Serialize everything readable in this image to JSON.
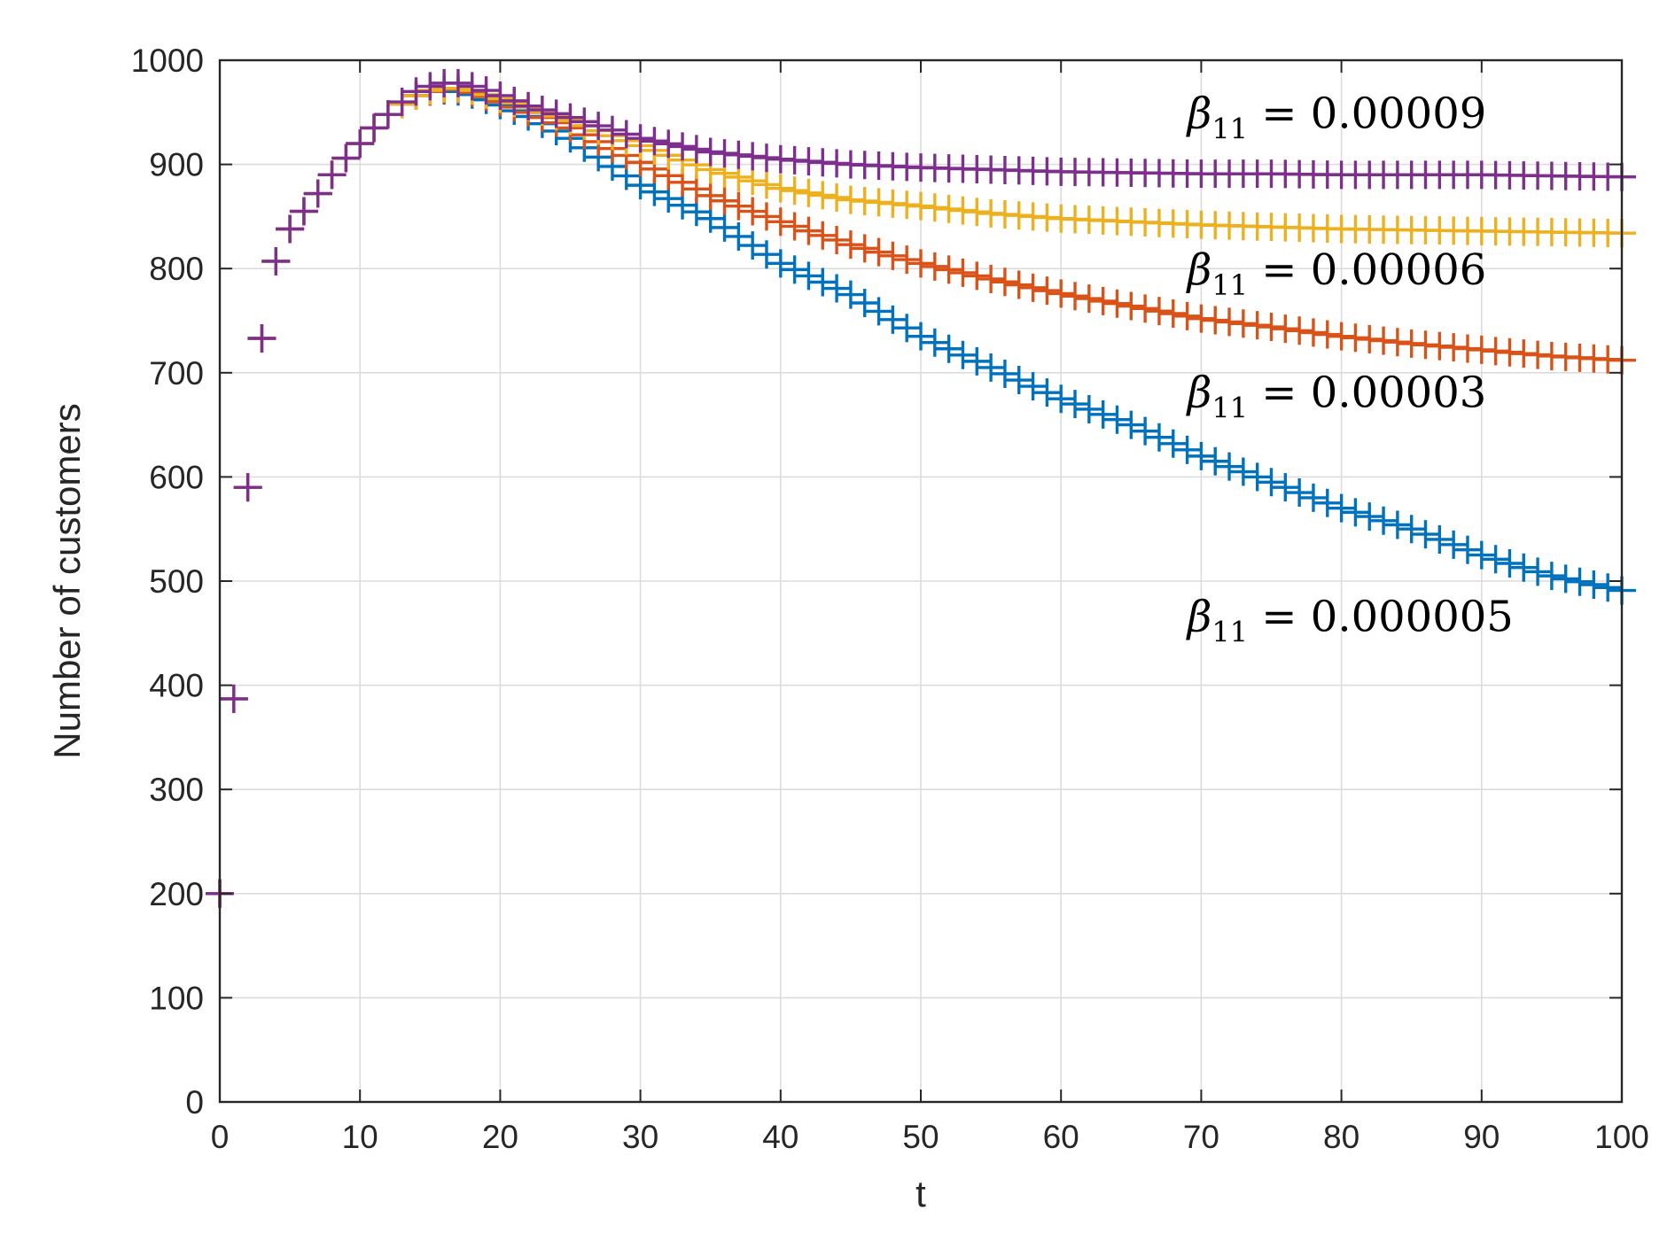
{
  "chart_data": {
    "type": "scatter",
    "title": "",
    "xlabel": "t",
    "ylabel": "Number of customers",
    "xlim": [
      0,
      100
    ],
    "ylim": [
      0,
      1000
    ],
    "xticks": [
      "0",
      "10",
      "20",
      "30",
      "40",
      "50",
      "60",
      "70",
      "80",
      "90",
      "100"
    ],
    "yticks": [
      "0",
      "100",
      "200",
      "300",
      "400",
      "500",
      "600",
      "700",
      "800",
      "900",
      "1000"
    ],
    "grid": true,
    "marker": "+",
    "x_sampled_every": 1,
    "series": [
      {
        "name": "β11 = 0.000005",
        "color": "#0072BD",
        "anchors": [
          [
            0,
            200
          ],
          [
            1,
            387
          ],
          [
            2,
            590
          ],
          [
            3,
            733
          ],
          [
            4,
            807
          ],
          [
            5,
            838
          ],
          [
            6,
            855
          ],
          [
            7,
            872
          ],
          [
            8,
            890
          ],
          [
            9,
            906
          ],
          [
            10,
            920
          ],
          [
            11,
            935
          ],
          [
            12,
            948
          ],
          [
            13,
            958
          ],
          [
            14,
            966
          ],
          [
            15,
            970
          ],
          [
            16,
            971
          ],
          [
            17,
            970
          ],
          [
            18,
            967
          ],
          [
            19,
            962
          ],
          [
            20,
            957
          ],
          [
            22,
            946
          ],
          [
            25,
            925
          ],
          [
            30,
            880
          ],
          [
            35,
            848
          ],
          [
            40,
            805
          ],
          [
            45,
            775
          ],
          [
            50,
            735
          ],
          [
            55,
            705
          ],
          [
            60,
            675
          ],
          [
            65,
            650
          ],
          [
            70,
            620
          ],
          [
            75,
            595
          ],
          [
            80,
            570
          ],
          [
            85,
            550
          ],
          [
            90,
            525
          ],
          [
            95,
            505
          ],
          [
            100,
            491
          ]
        ]
      },
      {
        "name": "β11 = 0.00003",
        "color": "#D95319",
        "anchors": [
          [
            0,
            200
          ],
          [
            1,
            387
          ],
          [
            2,
            590
          ],
          [
            3,
            733
          ],
          [
            4,
            807
          ],
          [
            5,
            838
          ],
          [
            6,
            855
          ],
          [
            7,
            872
          ],
          [
            8,
            890
          ],
          [
            9,
            906
          ],
          [
            10,
            920
          ],
          [
            11,
            935
          ],
          [
            12,
            948
          ],
          [
            13,
            958
          ],
          [
            14,
            966
          ],
          [
            15,
            970
          ],
          [
            16,
            972
          ],
          [
            17,
            972
          ],
          [
            18,
            969
          ],
          [
            19,
            965
          ],
          [
            20,
            960
          ],
          [
            22,
            950
          ],
          [
            25,
            935
          ],
          [
            30,
            902
          ],
          [
            35,
            870
          ],
          [
            40,
            845
          ],
          [
            45,
            823
          ],
          [
            50,
            805
          ],
          [
            55,
            790
          ],
          [
            60,
            776
          ],
          [
            65,
            764
          ],
          [
            70,
            752
          ],
          [
            75,
            744
          ],
          [
            80,
            735
          ],
          [
            85,
            728
          ],
          [
            90,
            722
          ],
          [
            95,
            716
          ],
          [
            100,
            712
          ]
        ]
      },
      {
        "name": "β11 = 0.00006",
        "color": "#EDB120",
        "anchors": [
          [
            0,
            200
          ],
          [
            1,
            387
          ],
          [
            2,
            590
          ],
          [
            3,
            733
          ],
          [
            4,
            807
          ],
          [
            5,
            838
          ],
          [
            6,
            855
          ],
          [
            7,
            872
          ],
          [
            8,
            890
          ],
          [
            9,
            906
          ],
          [
            10,
            920
          ],
          [
            11,
            935
          ],
          [
            12,
            948
          ],
          [
            13,
            958
          ],
          [
            14,
            966
          ],
          [
            15,
            971
          ],
          [
            16,
            973
          ],
          [
            17,
            973
          ],
          [
            18,
            971
          ],
          [
            19,
            967
          ],
          [
            20,
            963
          ],
          [
            22,
            955
          ],
          [
            25,
            942
          ],
          [
            30,
            918
          ],
          [
            35,
            895
          ],
          [
            40,
            877
          ],
          [
            45,
            866
          ],
          [
            50,
            860
          ],
          [
            55,
            853
          ],
          [
            60,
            848
          ],
          [
            65,
            845
          ],
          [
            70,
            842
          ],
          [
            75,
            840
          ],
          [
            80,
            838
          ],
          [
            85,
            837
          ],
          [
            90,
            836
          ],
          [
            95,
            835
          ],
          [
            100,
            834
          ]
        ]
      },
      {
        "name": "β11 = 0.00009",
        "color": "#7E2F8E",
        "anchors": [
          [
            0,
            200
          ],
          [
            1,
            387
          ],
          [
            2,
            590
          ],
          [
            3,
            733
          ],
          [
            4,
            807
          ],
          [
            5,
            838
          ],
          [
            6,
            855
          ],
          [
            7,
            872
          ],
          [
            8,
            890
          ],
          [
            9,
            906
          ],
          [
            10,
            920
          ],
          [
            11,
            935
          ],
          [
            12,
            948
          ],
          [
            13,
            960
          ],
          [
            14,
            970
          ],
          [
            15,
            975
          ],
          [
            16,
            978
          ],
          [
            17,
            978
          ],
          [
            18,
            975
          ],
          [
            19,
            971
          ],
          [
            20,
            966
          ],
          [
            22,
            956
          ],
          [
            25,
            945
          ],
          [
            30,
            925
          ],
          [
            35,
            912
          ],
          [
            40,
            905
          ],
          [
            45,
            900
          ],
          [
            50,
            897
          ],
          [
            55,
            895
          ],
          [
            60,
            893
          ],
          [
            65,
            892
          ],
          [
            70,
            891
          ],
          [
            75,
            891
          ],
          [
            80,
            890
          ],
          [
            85,
            890
          ],
          [
            90,
            890
          ],
          [
            95,
            889
          ],
          [
            100,
            888
          ]
        ]
      }
    ],
    "annotations": [
      {
        "base": "β",
        "sub": "11",
        "text": " = 0.00009",
        "x": 69,
        "y": 935
      },
      {
        "base": "β",
        "sub": "11",
        "text": " = 0.00006",
        "x": 69,
        "y": 785
      },
      {
        "base": "β",
        "sub": "11",
        "text": " = 0.00003",
        "x": 69,
        "y": 667
      },
      {
        "base": "β",
        "sub": "11",
        "text": " = 0.000005",
        "x": 69,
        "y": 452
      }
    ]
  }
}
